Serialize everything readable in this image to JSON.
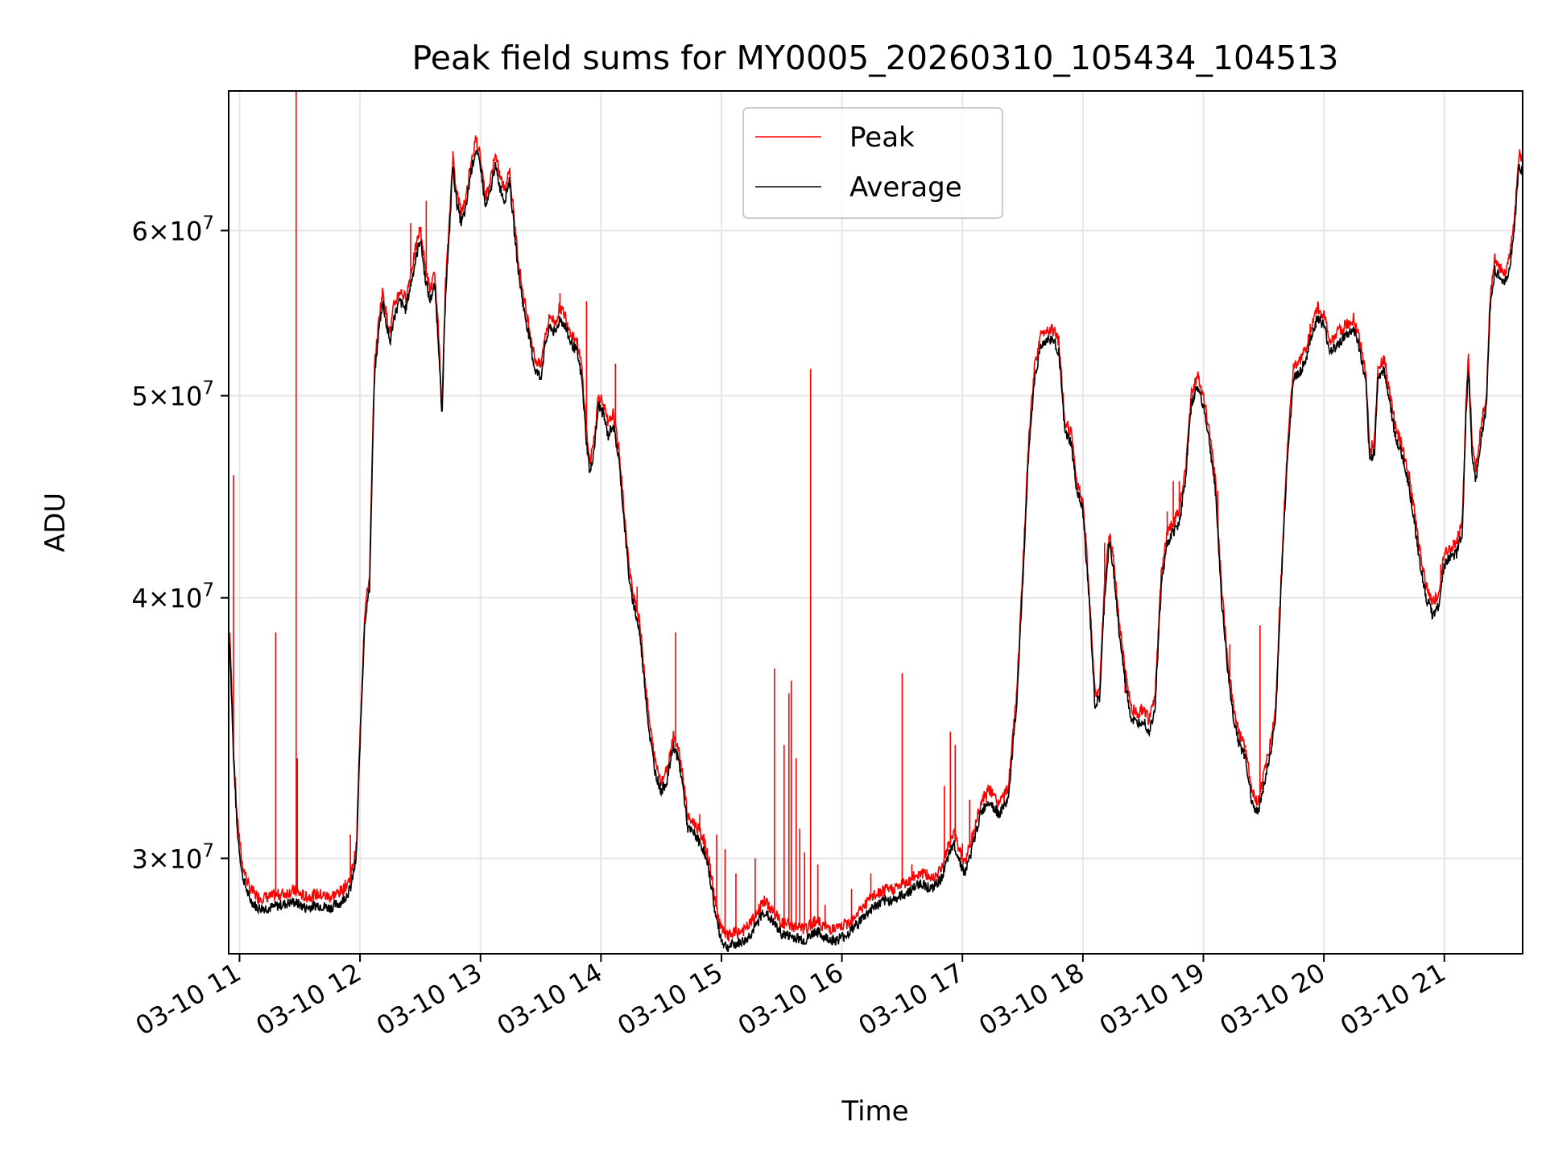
{
  "chart_data": {
    "type": "line",
    "title": "Peak field sums for MY0005_20260310_105434_104513",
    "xlabel": "Time",
    "ylabel": "ADU",
    "yscale": "log",
    "ylim": [
      27000000,
      70000000
    ],
    "xlim": [
      10.91,
      21.65
    ],
    "grid": true,
    "legend": {
      "position": "top-center",
      "entries": [
        "Peak",
        "Average"
      ]
    },
    "x_ticks": [
      {
        "value": 11,
        "label": "03-10 11"
      },
      {
        "value": 12,
        "label": "03-10 12"
      },
      {
        "value": 13,
        "label": "03-10 13"
      },
      {
        "value": 14,
        "label": "03-10 14"
      },
      {
        "value": 15,
        "label": "03-10 15"
      },
      {
        "value": 16,
        "label": "03-10 16"
      },
      {
        "value": 17,
        "label": "03-10 17"
      },
      {
        "value": 18,
        "label": "03-10 18"
      },
      {
        "value": 19,
        "label": "03-10 19"
      },
      {
        "value": 20,
        "label": "03-10 20"
      },
      {
        "value": 21,
        "label": "03-10 21"
      }
    ],
    "y_ticks": [
      {
        "value": 30000000,
        "label": "3 × 10^7",
        "mant": "3",
        "exp": "7"
      },
      {
        "value": 40000000,
        "label": "4 × 10^7",
        "mant": "4",
        "exp": "7"
      },
      {
        "value": 50000000,
        "label": "5 × 10^7",
        "mant": "5",
        "exp": "7"
      },
      {
        "value": 60000000,
        "label": "6 × 10^7",
        "mant": "6",
        "exp": "7"
      }
    ],
    "series": [
      {
        "name": "Average",
        "color": "#000000",
        "points": [
          [
            10.92,
            38.0
          ],
          [
            10.95,
            33.5
          ],
          [
            10.98,
            31.0
          ],
          [
            11.02,
            29.5
          ],
          [
            11.08,
            28.7
          ],
          [
            11.15,
            28.4
          ],
          [
            11.25,
            28.4
          ],
          [
            11.35,
            28.5
          ],
          [
            11.45,
            28.6
          ],
          [
            11.55,
            28.4
          ],
          [
            11.65,
            28.5
          ],
          [
            11.75,
            28.4
          ],
          [
            11.85,
            28.6
          ],
          [
            11.92,
            29.0
          ],
          [
            11.97,
            30.0
          ],
          [
            12.0,
            34.0
          ],
          [
            12.04,
            39.0
          ],
          [
            12.08,
            40.5
          ],
          [
            12.12,
            51.0
          ],
          [
            12.16,
            54.0
          ],
          [
            12.19,
            55.5
          ],
          [
            12.22,
            54.0
          ],
          [
            12.25,
            53.0
          ],
          [
            12.28,
            54.5
          ],
          [
            12.33,
            55.5
          ],
          [
            12.38,
            55.0
          ],
          [
            12.42,
            56.5
          ],
          [
            12.46,
            58.0
          ],
          [
            12.5,
            59.5
          ],
          [
            12.54,
            57.0
          ],
          [
            12.58,
            55.5
          ],
          [
            12.62,
            56.5
          ],
          [
            12.66,
            52.0
          ],
          [
            12.68,
            48.5
          ],
          [
            12.71,
            56.0
          ],
          [
            12.74,
            59.5
          ],
          [
            12.77,
            64.5
          ],
          [
            12.8,
            62.0
          ],
          [
            12.84,
            60.5
          ],
          [
            12.88,
            61.5
          ],
          [
            12.92,
            64.0
          ],
          [
            12.96,
            65.5
          ],
          [
            13.0,
            64.5
          ],
          [
            13.04,
            61.5
          ],
          [
            13.08,
            62.5
          ],
          [
            13.12,
            64.5
          ],
          [
            13.16,
            63.0
          ],
          [
            13.2,
            62.0
          ],
          [
            13.24,
            63.5
          ],
          [
            13.28,
            60.0
          ],
          [
            13.32,
            57.0
          ],
          [
            13.36,
            55.0
          ],
          [
            13.4,
            53.5
          ],
          [
            13.45,
            51.5
          ],
          [
            13.5,
            51.0
          ],
          [
            13.54,
            53.0
          ],
          [
            13.58,
            54.0
          ],
          [
            13.62,
            53.5
          ],
          [
            13.66,
            54.5
          ],
          [
            13.7,
            54.0
          ],
          [
            13.75,
            53.0
          ],
          [
            13.8,
            52.5
          ],
          [
            13.84,
            51.0
          ],
          [
            13.88,
            47.5
          ],
          [
            13.91,
            45.8
          ],
          [
            13.95,
            47.5
          ],
          [
            13.98,
            49.5
          ],
          [
            14.02,
            49.0
          ],
          [
            14.06,
            47.8
          ],
          [
            14.1,
            48.5
          ],
          [
            14.15,
            46.5
          ],
          [
            14.2,
            43.0
          ],
          [
            14.24,
            40.5
          ],
          [
            14.28,
            39.5
          ],
          [
            14.32,
            38.5
          ],
          [
            14.36,
            36.5
          ],
          [
            14.4,
            34.5
          ],
          [
            14.45,
            33.0
          ],
          [
            14.5,
            32.3
          ],
          [
            14.55,
            32.7
          ],
          [
            14.6,
            34.0
          ],
          [
            14.64,
            33.5
          ],
          [
            14.68,
            32.5
          ],
          [
            14.72,
            31.0
          ],
          [
            14.78,
            30.8
          ],
          [
            14.85,
            30.3
          ],
          [
            14.9,
            29.5
          ],
          [
            14.95,
            28.2
          ],
          [
            15.0,
            27.4
          ],
          [
            15.05,
            27.2
          ],
          [
            15.12,
            27.3
          ],
          [
            15.2,
            27.4
          ],
          [
            15.28,
            27.8
          ],
          [
            15.35,
            28.3
          ],
          [
            15.42,
            28.0
          ],
          [
            15.5,
            27.6
          ],
          [
            15.6,
            27.5
          ],
          [
            15.7,
            27.4
          ],
          [
            15.78,
            27.7
          ],
          [
            15.85,
            27.5
          ],
          [
            15.95,
            27.4
          ],
          [
            16.05,
            27.6
          ],
          [
            16.15,
            28.0
          ],
          [
            16.25,
            28.4
          ],
          [
            16.35,
            28.6
          ],
          [
            16.45,
            28.7
          ],
          [
            16.55,
            28.9
          ],
          [
            16.65,
            29.2
          ],
          [
            16.75,
            29.0
          ],
          [
            16.82,
            29.3
          ],
          [
            16.88,
            30.0
          ],
          [
            16.93,
            30.5
          ],
          [
            16.97,
            30.0
          ],
          [
            17.02,
            29.5
          ],
          [
            17.08,
            30.3
          ],
          [
            17.15,
            31.5
          ],
          [
            17.22,
            32.0
          ],
          [
            17.3,
            31.5
          ],
          [
            17.38,
            32.0
          ],
          [
            17.45,
            35.5
          ],
          [
            17.5,
            40.5
          ],
          [
            17.55,
            47.0
          ],
          [
            17.6,
            51.0
          ],
          [
            17.65,
            52.8
          ],
          [
            17.7,
            53.2
          ],
          [
            17.75,
            53.2
          ],
          [
            17.8,
            52.5
          ],
          [
            17.85,
            48.0
          ],
          [
            17.9,
            47.5
          ],
          [
            17.95,
            45.0
          ],
          [
            18.0,
            44.0
          ],
          [
            18.05,
            40.0
          ],
          [
            18.1,
            35.5
          ],
          [
            18.14,
            35.8
          ],
          [
            18.18,
            40.0
          ],
          [
            18.22,
            42.5
          ],
          [
            18.26,
            41.0
          ],
          [
            18.3,
            38.5
          ],
          [
            18.35,
            36.5
          ],
          [
            18.4,
            35.0
          ],
          [
            18.45,
            34.8
          ],
          [
            18.5,
            35.0
          ],
          [
            18.55,
            34.5
          ],
          [
            18.6,
            35.5
          ],
          [
            18.65,
            40.5
          ],
          [
            18.7,
            42.5
          ],
          [
            18.75,
            43.0
          ],
          [
            18.8,
            43.5
          ],
          [
            18.85,
            45.5
          ],
          [
            18.9,
            49.5
          ],
          [
            18.95,
            50.5
          ],
          [
            19.0,
            49.5
          ],
          [
            19.05,
            47.5
          ],
          [
            19.1,
            45.0
          ],
          [
            19.15,
            40.0
          ],
          [
            19.2,
            37.0
          ],
          [
            19.25,
            35.0
          ],
          [
            19.3,
            34.0
          ],
          [
            19.35,
            33.5
          ],
          [
            19.4,
            32.0
          ],
          [
            19.45,
            31.5
          ],
          [
            19.5,
            32.5
          ],
          [
            19.55,
            33.5
          ],
          [
            19.6,
            35.0
          ],
          [
            19.65,
            41.0
          ],
          [
            19.7,
            47.0
          ],
          [
            19.75,
            51.0
          ],
          [
            19.8,
            51.3
          ],
          [
            19.85,
            52.0
          ],
          [
            19.9,
            53.5
          ],
          [
            19.95,
            54.5
          ],
          [
            20.0,
            54.0
          ],
          [
            20.05,
            52.5
          ],
          [
            20.1,
            52.8
          ],
          [
            20.15,
            53.2
          ],
          [
            20.2,
            53.5
          ],
          [
            20.25,
            53.8
          ],
          [
            20.3,
            52.5
          ],
          [
            20.35,
            50.5
          ],
          [
            20.38,
            46.5
          ],
          [
            20.42,
            47.0
          ],
          [
            20.45,
            51.0
          ],
          [
            20.5,
            51.5
          ],
          [
            20.55,
            49.5
          ],
          [
            20.6,
            47.5
          ],
          [
            20.65,
            46.8
          ],
          [
            20.7,
            45.5
          ],
          [
            20.75,
            43.5
          ],
          [
            20.8,
            41.5
          ],
          [
            20.85,
            40.0
          ],
          [
            20.9,
            39.3
          ],
          [
            20.95,
            39.6
          ],
          [
            21.0,
            41.5
          ],
          [
            21.05,
            41.8
          ],
          [
            21.1,
            42.0
          ],
          [
            21.15,
            43.0
          ],
          [
            21.18,
            49.0
          ],
          [
            21.2,
            51.5
          ],
          [
            21.23,
            47.0
          ],
          [
            21.26,
            45.5
          ],
          [
            21.3,
            47.5
          ],
          [
            21.35,
            49.5
          ],
          [
            21.38,
            55.0
          ],
          [
            21.42,
            57.5
          ],
          [
            21.46,
            57.0
          ],
          [
            21.5,
            56.5
          ],
          [
            21.54,
            57.5
          ],
          [
            21.58,
            60.0
          ],
          [
            21.62,
            64.5
          ],
          [
            21.65,
            64.0
          ]
        ]
      },
      {
        "name": "Peak",
        "color": "#ff0000",
        "spikes": [
          [
            10.95,
            45.8
          ],
          [
            11.3,
            38.5
          ],
          [
            11.47,
            72.0
          ],
          [
            11.48,
            33.5
          ],
          [
            11.92,
            30.8
          ],
          [
            12.42,
            60.5
          ],
          [
            12.55,
            62.0
          ],
          [
            12.77,
            65.5
          ],
          [
            12.97,
            66.5
          ],
          [
            13.66,
            56.0
          ],
          [
            13.88,
            55.5
          ],
          [
            14.12,
            51.8
          ],
          [
            14.3,
            40.5
          ],
          [
            14.62,
            38.5
          ],
          [
            14.82,
            31.5
          ],
          [
            14.96,
            30.8
          ],
          [
            15.03,
            30.3
          ],
          [
            15.12,
            29.5
          ],
          [
            15.28,
            30.0
          ],
          [
            15.44,
            37.0
          ],
          [
            15.52,
            34.0
          ],
          [
            15.56,
            36.0
          ],
          [
            15.58,
            36.5
          ],
          [
            15.62,
            33.5
          ],
          [
            15.65,
            31.0
          ],
          [
            15.69,
            30.2
          ],
          [
            15.74,
            51.5
          ],
          [
            15.8,
            29.8
          ],
          [
            15.86,
            28.5
          ],
          [
            16.08,
            29.0
          ],
          [
            16.24,
            29.5
          ],
          [
            16.5,
            36.8
          ],
          [
            16.58,
            29.8
          ],
          [
            16.72,
            29.5
          ],
          [
            16.85,
            32.5
          ],
          [
            16.9,
            34.5
          ],
          [
            16.94,
            34.0
          ],
          [
            17.0,
            30.5
          ],
          [
            17.06,
            32.0
          ],
          [
            17.2,
            31.8
          ],
          [
            17.88,
            48.0
          ],
          [
            18.18,
            42.5
          ],
          [
            18.35,
            36.0
          ],
          [
            18.42,
            35.0
          ],
          [
            18.7,
            44.0
          ],
          [
            18.75,
            45.5
          ],
          [
            18.8,
            45.5
          ],
          [
            19.08,
            46.5
          ],
          [
            19.12,
            45.0
          ],
          [
            19.22,
            38.0
          ],
          [
            19.29,
            34.5
          ],
          [
            19.35,
            34.0
          ],
          [
            19.47,
            38.8
          ],
          [
            19.55,
            34.0
          ],
          [
            20.97,
            41.5
          ],
          [
            21.3,
            48.0
          ],
          [
            21.42,
            58.5
          ],
          [
            21.5,
            57.5
          ],
          [
            21.55,
            58.5
          ]
        ]
      }
    ]
  }
}
